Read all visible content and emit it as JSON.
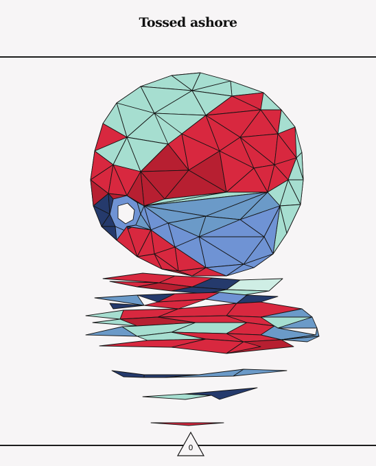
{
  "header": {
    "title": "Tossed ashore"
  },
  "counter": {
    "value": "0"
  },
  "colors": {
    "red": "#d8283f",
    "dark_red": "#b71f31",
    "mint": "#a6ded0",
    "blue": "#6f93d4",
    "steel_blue": "#6b9ac8",
    "navy": "#253a6c",
    "outline": "#141414",
    "background": "#f7f5f6"
  },
  "art": {
    "subject": "low-poly-beach-ball",
    "reflection_icon": "water-reflection-icon"
  }
}
